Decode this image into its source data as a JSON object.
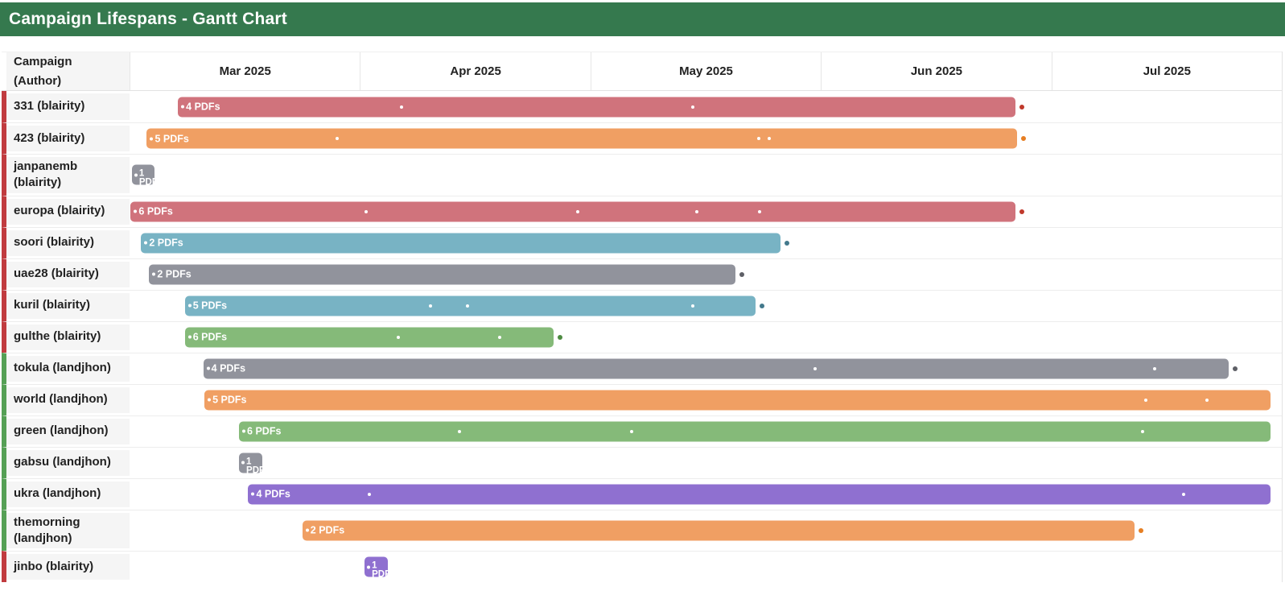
{
  "title": "Campaign Lifespans - Gantt Chart",
  "header": {
    "label_column": "Campaign (Author)",
    "months": [
      "Mar 2025",
      "Apr 2025",
      "May 2025",
      "Jun 2025",
      "Jul 2025"
    ]
  },
  "colors": {
    "title_bar_bg": "#35794e",
    "strip_blairity": "#c13b3f",
    "strip_landjhon": "#55a055",
    "label_cell_bg": "#f5f5f5",
    "palette": {
      "red": {
        "bar": "#d0737c",
        "dot": "#c0392b"
      },
      "orange": {
        "bar": "#f09f63",
        "dot": "#e67e22"
      },
      "blue": {
        "bar": "#78b3c4",
        "dot": "#43798c"
      },
      "gray": {
        "bar": "#91939c",
        "dot": "#5e5f66"
      },
      "green": {
        "bar": "#85ba79",
        "dot": "#4d8b41"
      },
      "purple": {
        "bar": "#8f70d0",
        "dot": "#6a4cab"
      }
    }
  },
  "chart_data": {
    "type": "gantt",
    "title": "Campaign Lifespans - Gantt Chart",
    "timeline": {
      "start": "2025-03-01",
      "end": "2025-08-01",
      "unit": "month",
      "tick_labels": [
        "Mar 2025",
        "Apr 2025",
        "May 2025",
        "Jun 2025",
        "Jul 2025"
      ]
    },
    "rows": [
      {
        "campaign": "331",
        "author": "blairity",
        "label": "331 (blairity)",
        "pdf_count": 4,
        "bar_label": "4 PDFs",
        "color": "red",
        "start_date": "2025-03-07",
        "end_date": "2025-06-28",
        "start_pct": 4.2,
        "end_pct": 76.9,
        "markers_pct": [
          23.6,
          48.9
        ],
        "marker_dates": [
          "2025-04-06",
          "2025-05-15"
        ],
        "end_dot": true,
        "tiny": false
      },
      {
        "campaign": "423",
        "author": "blairity",
        "label": "423 (blairity)",
        "pdf_count": 5,
        "bar_label": "5 PDFs",
        "color": "orange",
        "start_date": "2025-03-03",
        "end_date": "2025-06-28",
        "start_pct": 1.5,
        "end_pct": 77.0,
        "markers_pct": [
          18.0,
          54.6,
          55.5
        ],
        "marker_dates": [
          "2025-03-29",
          "2025-05-24",
          "2025-05-26"
        ],
        "end_dot": true,
        "tiny": false
      },
      {
        "campaign": "janpanemb",
        "author": "blairity",
        "label": "janpanemb (blairity)",
        "pdf_count": 1,
        "bar_label": "1 PDF",
        "color": "gray",
        "start_date": "2025-03-01",
        "end_date": "2025-03-04",
        "start_pct": 0.2,
        "end_pct": 2.2,
        "markers_pct": [],
        "marker_dates": [],
        "end_dot": false,
        "tiny": true
      },
      {
        "campaign": "europa",
        "author": "blairity",
        "label": "europa (blairity)",
        "pdf_count": 6,
        "bar_label": "6 PDFs",
        "color": "red",
        "start_date": "2025-03-01",
        "end_date": "2025-06-28",
        "start_pct": 0.1,
        "end_pct": 76.9,
        "markers_pct": [
          20.5,
          38.9,
          49.2,
          54.7
        ],
        "marker_dates": [
          "2025-04-01",
          "2025-04-30",
          "2025-05-16",
          "2025-05-25"
        ],
        "end_dot": true,
        "tiny": false
      },
      {
        "campaign": "soori",
        "author": "blairity",
        "label": "soori (blairity)",
        "pdf_count": 2,
        "bar_label": "2 PDFs",
        "color": "blue",
        "start_date": "2025-03-02",
        "end_date": "2025-05-27",
        "start_pct": 1.0,
        "end_pct": 56.5,
        "markers_pct": [],
        "marker_dates": [],
        "end_dot": true,
        "tiny": false
      },
      {
        "campaign": "uae28",
        "author": "blairity",
        "label": "uae28 (blairity)",
        "pdf_count": 2,
        "bar_label": "2 PDFs",
        "color": "gray",
        "start_date": "2025-03-03",
        "end_date": "2025-05-21",
        "start_pct": 1.7,
        "end_pct": 52.6,
        "markers_pct": [],
        "marker_dates": [],
        "end_dot": true,
        "tiny": false
      },
      {
        "campaign": "kuril",
        "author": "blairity",
        "label": "kuril (blairity)",
        "pdf_count": 5,
        "bar_label": "5 PDFs",
        "color": "blue",
        "start_date": "2025-03-08",
        "end_date": "2025-05-24",
        "start_pct": 4.8,
        "end_pct": 54.3,
        "markers_pct": [
          26.1,
          29.3,
          48.9
        ],
        "marker_dates": [
          "2025-04-10",
          "2025-04-15",
          "2025-05-15"
        ],
        "end_dot": true,
        "tiny": false
      },
      {
        "campaign": "gulthe",
        "author": "blairity",
        "label": "gulthe (blairity)",
        "pdf_count": 6,
        "bar_label": "6 PDFs",
        "color": "green",
        "start_date": "2025-03-08",
        "end_date": "2025-04-27",
        "start_pct": 4.8,
        "end_pct": 36.8,
        "markers_pct": [
          23.3,
          32.1
        ],
        "marker_dates": [
          "2025-04-06",
          "2025-04-19"
        ],
        "end_dot": true,
        "tiny": false
      },
      {
        "campaign": "tokula",
        "author": "landjhon",
        "label": "tokula (landjhon)",
        "pdf_count": 4,
        "bar_label": "4 PDFs",
        "color": "gray",
        "start_date": "2025-03-10",
        "end_date": "2025-07-26",
        "start_pct": 6.4,
        "end_pct": 95.4,
        "markers_pct": [
          59.5,
          89.0
        ],
        "marker_dates": [
          "2025-05-31",
          "2025-07-16"
        ],
        "end_dot": true,
        "tiny": false
      },
      {
        "campaign": "world",
        "author": "landjhon",
        "label": "world (landjhon)",
        "pdf_count": 5,
        "bar_label": "5 PDFs",
        "color": "orange",
        "start_date": "2025-03-11",
        "end_date": "2025-07-31",
        "start_pct": 6.5,
        "end_pct": 99.0,
        "markers_pct": [
          88.2,
          93.5
        ],
        "marker_dates": [
          "2025-07-14",
          "2025-07-22"
        ],
        "end_dot": false,
        "tiny": false
      },
      {
        "campaign": "green",
        "author": "landjhon",
        "label": "green (landjhon)",
        "pdf_count": 6,
        "bar_label": "6 PDFs",
        "color": "green",
        "start_date": "2025-03-15",
        "end_date": "2025-07-31",
        "start_pct": 9.5,
        "end_pct": 99.0,
        "markers_pct": [
          28.6,
          43.6,
          87.9,
          99.6
        ],
        "marker_dates": [
          "2025-04-14",
          "2025-05-07",
          "2025-07-15",
          "2025-07-31"
        ],
        "end_dot": false,
        "tiny": false
      },
      {
        "campaign": "gabsu",
        "author": "landjhon",
        "label": "gabsu (landjhon)",
        "pdf_count": 1,
        "bar_label": "1 PDF",
        "color": "gray",
        "start_date": "2025-03-15",
        "end_date": "2025-03-18",
        "start_pct": 9.5,
        "end_pct": 11.5,
        "markers_pct": [],
        "marker_dates": [],
        "end_dot": false,
        "tiny": true
      },
      {
        "campaign": "ukra",
        "author": "landjhon",
        "label": "ukra (landjhon)",
        "pdf_count": 4,
        "bar_label": "4 PDFs",
        "color": "purple",
        "start_date": "2025-03-17",
        "end_date": "2025-07-31",
        "start_pct": 10.3,
        "end_pct": 99.0,
        "markers_pct": [
          20.8,
          91.5
        ],
        "marker_dates": [
          "2025-04-01",
          "2025-07-20"
        ],
        "end_dot": false,
        "tiny": false
      },
      {
        "campaign": "themorning",
        "author": "landjhon",
        "label": "themorning (landjhon)",
        "pdf_count": 2,
        "bar_label": "2 PDFs",
        "color": "orange",
        "start_date": "2025-03-24",
        "end_date": "2025-07-13",
        "start_pct": 15.0,
        "end_pct": 87.2,
        "markers_pct": [],
        "marker_dates": [],
        "end_dot": true,
        "tiny": false
      },
      {
        "campaign": "jinbo",
        "author": "blairity",
        "label": "jinbo (blairity)",
        "pdf_count": 1,
        "bar_label": "1 PDF",
        "color": "purple",
        "start_date": "2025-04-01",
        "end_date": "2025-04-04",
        "start_pct": 20.4,
        "end_pct": 22.4,
        "markers_pct": [],
        "marker_dates": [],
        "end_dot": false,
        "tiny": true
      }
    ]
  }
}
